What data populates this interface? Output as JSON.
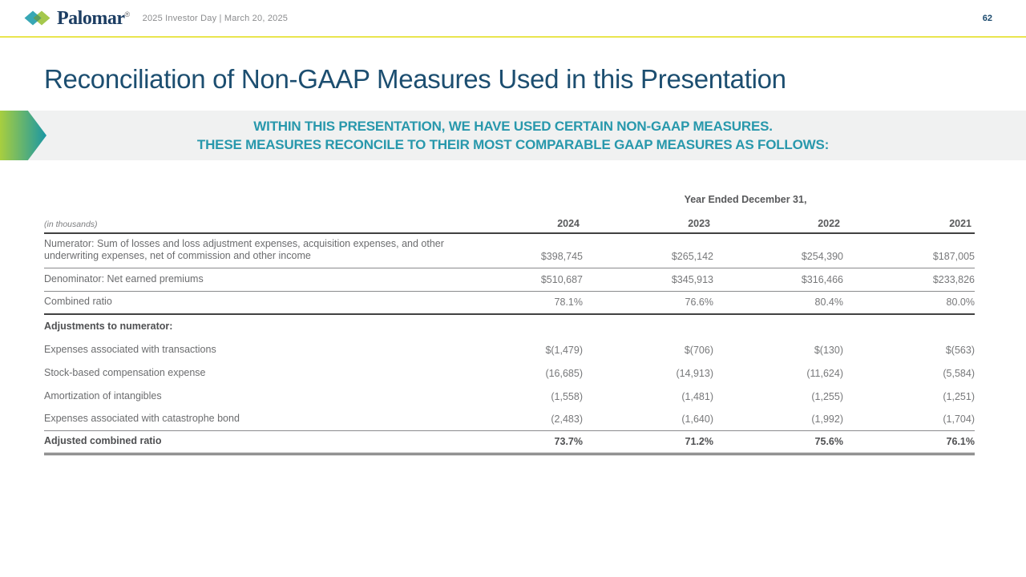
{
  "header": {
    "logo_text": "Palomar",
    "logo_reg": "®",
    "subtitle": "2025 Investor Day | March 20, 2025",
    "page_number": "62"
  },
  "title": "Reconciliation of Non-GAAP Measures Used in this Presentation",
  "banner": {
    "line1": "WITHIN THIS PRESENTATION, WE HAVE USED CERTAIN NON-GAAP MEASURES.",
    "line2": "THESE MEASURES RECONCILE TO THEIR MOST COMPARABLE GAAP MEASURES AS FOLLOWS:"
  },
  "table": {
    "units_note": "(in thousands)",
    "span_header": "Year Ended December 31,",
    "years": [
      "2024",
      "2023",
      "2022",
      "2021"
    ],
    "rows": [
      {
        "label": "Numerator: Sum of losses and loss adjustment expenses, acquisition expenses, and other underwriting expenses, net of commission and other income",
        "values": [
          "$398,745",
          "$265,142",
          "$254,390",
          "$187,005"
        ],
        "bold": false,
        "rule": "single"
      },
      {
        "label": "Denominator: Net earned premiums",
        "values": [
          "$510,687",
          "$345,913",
          "$316,466",
          "$233,826"
        ],
        "bold": false,
        "rule": "single"
      },
      {
        "label": "Combined ratio",
        "values": [
          "78.1%",
          "76.6%",
          "80.4%",
          "80.0%"
        ],
        "bold": false,
        "rule": "thick"
      },
      {
        "label": "Adjustments to numerator:",
        "values": [
          "",
          "",
          "",
          ""
        ],
        "bold": true,
        "rule": "none"
      },
      {
        "label": "Expenses associated with transactions",
        "values": [
          "$(1,479)",
          "$(706)",
          "$(130)",
          "$(563)"
        ],
        "bold": false,
        "rule": "none"
      },
      {
        "label": "Stock-based compensation expense",
        "values": [
          "(16,685)",
          "(14,913)",
          "(11,624)",
          "(5,584)"
        ],
        "bold": false,
        "rule": "none"
      },
      {
        "label": "Amortization of intangibles",
        "values": [
          "(1,558)",
          "(1,481)",
          "(1,255)",
          "(1,251)"
        ],
        "bold": false,
        "rule": "none"
      },
      {
        "label": "Expenses associated with catastrophe bond",
        "values": [
          "(2,483)",
          "(1,640)",
          "(1,992)",
          "(1,704)"
        ],
        "bold": false,
        "rule": "single"
      },
      {
        "label": "Adjusted combined ratio",
        "values": [
          "73.7%",
          "71.2%",
          "75.6%",
          "76.1%"
        ],
        "bold": true,
        "rule": "double"
      }
    ]
  },
  "colors": {
    "navy": "#1d3e63",
    "title_blue": "#1c4e70",
    "teal": "#2898ac",
    "accent_yellow": "#e9e54f",
    "banner_bg": "#f0f1f1",
    "gradient_green": "#a8ce3f",
    "gradient_teal": "#1a97a4"
  }
}
